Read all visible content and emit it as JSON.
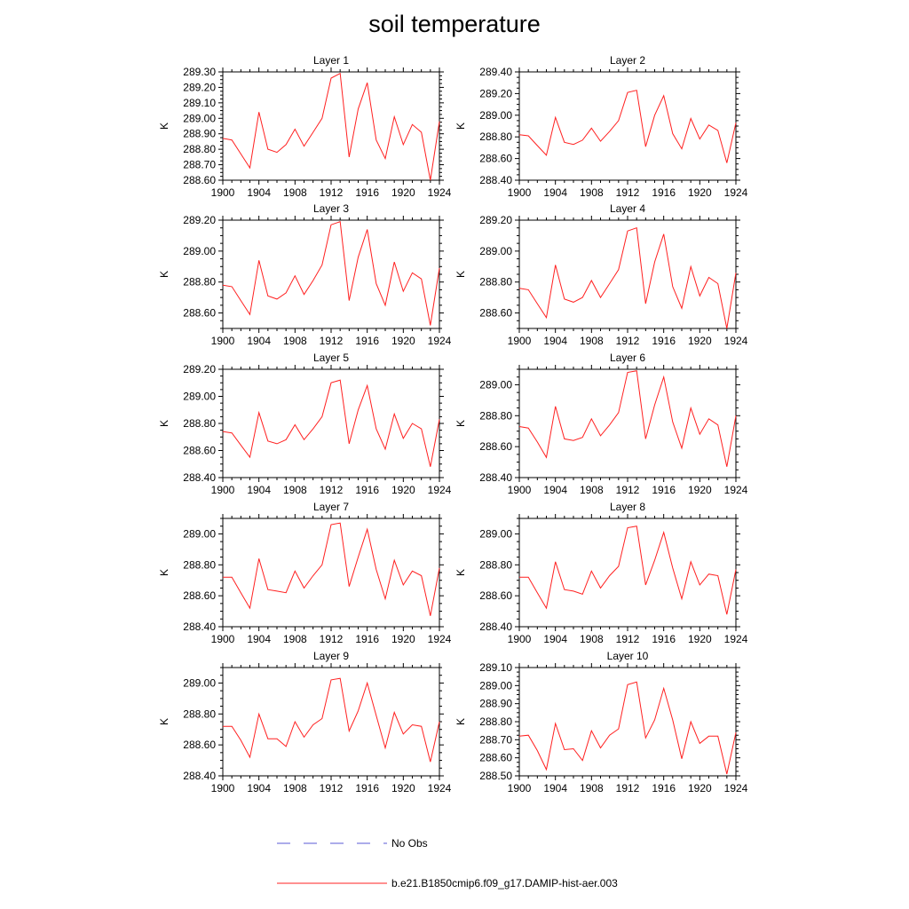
{
  "title": "soil temperature",
  "legend": {
    "position": "bottom",
    "entries": [
      {
        "label": "No Obs",
        "color": "#5a5ad6",
        "style": "dashed"
      },
      {
        "label": "b.e21.B1850cmip6.f09_g17.DAMIP-hist-aer.003",
        "color": "#ff2020",
        "style": "solid"
      }
    ]
  },
  "chart_data": [
    {
      "type": "line",
      "title": "Layer 1",
      "ylabel": "K",
      "x": [
        1900,
        1901,
        1902,
        1903,
        1904,
        1905,
        1906,
        1907,
        1908,
        1909,
        1910,
        1911,
        1912,
        1913,
        1914,
        1915,
        1916,
        1917,
        1918,
        1919,
        1920,
        1921,
        1922,
        1923,
        1924
      ],
      "series": [
        {
          "name": "b.e21.B1850cmip6.f09_g17.DAMIP-hist-aer.003",
          "values": [
            288.87,
            288.86,
            288.77,
            288.68,
            289.04,
            288.8,
            288.78,
            288.83,
            288.93,
            288.82,
            288.91,
            289.0,
            289.26,
            289.29,
            288.75,
            289.06,
            289.23,
            288.86,
            288.74,
            289.01,
            288.83,
            288.96,
            288.91,
            288.6,
            288.98
          ]
        }
      ],
      "ylim": [
        288.6,
        289.3
      ],
      "yticks": [
        "288.60",
        "288.70",
        "288.80",
        "288.90",
        "289.00",
        "289.10",
        "289.20",
        "289.30"
      ],
      "xticks": [
        "1900",
        "1904",
        "1908",
        "1912",
        "1916",
        "1920",
        "1924"
      ]
    },
    {
      "type": "line",
      "title": "Layer 2",
      "ylabel": "K",
      "x": [
        1900,
        1901,
        1902,
        1903,
        1904,
        1905,
        1906,
        1907,
        1908,
        1909,
        1910,
        1911,
        1912,
        1913,
        1914,
        1915,
        1916,
        1917,
        1918,
        1919,
        1920,
        1921,
        1922,
        1923,
        1924
      ],
      "series": [
        {
          "name": "b.e21.B1850cmip6.f09_g17.DAMIP-hist-aer.003",
          "values": [
            288.82,
            288.81,
            288.72,
            288.63,
            288.98,
            288.75,
            288.73,
            288.77,
            288.88,
            288.76,
            288.85,
            288.95,
            289.21,
            289.23,
            288.71,
            289.0,
            289.18,
            288.83,
            288.69,
            288.97,
            288.78,
            288.91,
            288.86,
            288.56,
            288.93
          ]
        }
      ],
      "ylim": [
        288.4,
        289.4
      ],
      "yticks": [
        "288.40",
        "288.60",
        "288.80",
        "289.00",
        "289.20",
        "289.40"
      ],
      "xticks": [
        "1900",
        "1904",
        "1908",
        "1912",
        "1916",
        "1920",
        "1924"
      ]
    },
    {
      "type": "line",
      "title": "Layer 3",
      "ylabel": "K",
      "x": [
        1900,
        1901,
        1902,
        1903,
        1904,
        1905,
        1906,
        1907,
        1908,
        1909,
        1910,
        1911,
        1912,
        1913,
        1914,
        1915,
        1916,
        1917,
        1918,
        1919,
        1920,
        1921,
        1922,
        1923,
        1924
      ],
      "series": [
        {
          "name": "b.e21.B1850cmip6.f09_g17.DAMIP-hist-aer.003",
          "values": [
            288.78,
            288.77,
            288.68,
            288.59,
            288.94,
            288.71,
            288.69,
            288.73,
            288.84,
            288.72,
            288.81,
            288.91,
            289.17,
            289.19,
            288.68,
            288.96,
            289.14,
            288.79,
            288.65,
            288.93,
            288.74,
            288.86,
            288.82,
            288.52,
            288.89
          ]
        }
      ],
      "ylim": [
        288.5,
        289.2
      ],
      "yticks": [
        "288.60",
        "288.80",
        "289.00",
        "289.20"
      ],
      "xticks": [
        "1900",
        "1904",
        "1908",
        "1912",
        "1916",
        "1920",
        "1924"
      ]
    },
    {
      "type": "line",
      "title": "Layer 4",
      "ylabel": "K",
      "x": [
        1900,
        1901,
        1902,
        1903,
        1904,
        1905,
        1906,
        1907,
        1908,
        1909,
        1910,
        1911,
        1912,
        1913,
        1914,
        1915,
        1916,
        1917,
        1918,
        1919,
        1920,
        1921,
        1922,
        1923,
        1924
      ],
      "series": [
        {
          "name": "b.e21.B1850cmip6.f09_g17.DAMIP-hist-aer.003",
          "values": [
            288.76,
            288.75,
            288.66,
            288.57,
            288.91,
            288.69,
            288.67,
            288.7,
            288.81,
            288.7,
            288.79,
            288.88,
            289.13,
            289.15,
            288.66,
            288.93,
            289.11,
            288.77,
            288.63,
            288.9,
            288.71,
            288.83,
            288.79,
            288.5,
            288.86
          ]
        }
      ],
      "ylim": [
        288.5,
        289.2
      ],
      "yticks": [
        "288.60",
        "288.80",
        "289.00",
        "289.20"
      ],
      "xticks": [
        "1900",
        "1904",
        "1908",
        "1912",
        "1916",
        "1920",
        "1924"
      ]
    },
    {
      "type": "line",
      "title": "Layer 5",
      "ylabel": "K",
      "x": [
        1900,
        1901,
        1902,
        1903,
        1904,
        1905,
        1906,
        1907,
        1908,
        1909,
        1910,
        1911,
        1912,
        1913,
        1914,
        1915,
        1916,
        1917,
        1918,
        1919,
        1920,
        1921,
        1922,
        1923,
        1924
      ],
      "series": [
        {
          "name": "b.e21.B1850cmip6.f09_g17.DAMIP-hist-aer.003",
          "values": [
            288.74,
            288.73,
            288.64,
            288.55,
            288.88,
            288.67,
            288.65,
            288.68,
            288.79,
            288.68,
            288.76,
            288.85,
            289.1,
            289.12,
            288.65,
            288.9,
            289.08,
            288.76,
            288.61,
            288.87,
            288.69,
            288.8,
            288.76,
            288.48,
            288.83
          ]
        }
      ],
      "ylim": [
        288.4,
        289.2
      ],
      "yticks": [
        "288.40",
        "288.60",
        "288.80",
        "289.00",
        "289.20"
      ],
      "xticks": [
        "1900",
        "1904",
        "1908",
        "1912",
        "1916",
        "1920",
        "1924"
      ]
    },
    {
      "type": "line",
      "title": "Layer 6",
      "ylabel": "K",
      "x": [
        1900,
        1901,
        1902,
        1903,
        1904,
        1905,
        1906,
        1907,
        1908,
        1909,
        1910,
        1911,
        1912,
        1913,
        1914,
        1915,
        1916,
        1917,
        1918,
        1919,
        1920,
        1921,
        1922,
        1923,
        1924
      ],
      "series": [
        {
          "name": "b.e21.B1850cmip6.f09_g17.DAMIP-hist-aer.003",
          "values": [
            288.73,
            288.72,
            288.63,
            288.53,
            288.86,
            288.65,
            288.64,
            288.66,
            288.78,
            288.67,
            288.74,
            288.82,
            289.08,
            289.09,
            288.65,
            288.87,
            289.05,
            288.76,
            288.59,
            288.85,
            288.68,
            288.78,
            288.74,
            288.47,
            288.8
          ]
        }
      ],
      "ylim": [
        288.4,
        289.1
      ],
      "yticks": [
        "288.40",
        "288.60",
        "288.80",
        "289.00"
      ],
      "xticks": [
        "1900",
        "1904",
        "1908",
        "1912",
        "1916",
        "1920",
        "1924"
      ]
    },
    {
      "type": "line",
      "title": "Layer 7",
      "ylabel": "K",
      "x": [
        1900,
        1901,
        1902,
        1903,
        1904,
        1905,
        1906,
        1907,
        1908,
        1909,
        1910,
        1911,
        1912,
        1913,
        1914,
        1915,
        1916,
        1917,
        1918,
        1919,
        1920,
        1921,
        1922,
        1923,
        1924
      ],
      "series": [
        {
          "name": "b.e21.B1850cmip6.f09_g17.DAMIP-hist-aer.003",
          "values": [
            288.72,
            288.72,
            288.62,
            288.52,
            288.84,
            288.64,
            288.63,
            288.62,
            288.76,
            288.65,
            288.73,
            288.8,
            289.06,
            289.07,
            288.66,
            288.85,
            289.03,
            288.77,
            288.58,
            288.83,
            288.67,
            288.76,
            288.73,
            288.47,
            288.78
          ]
        }
      ],
      "ylim": [
        288.4,
        289.1
      ],
      "yticks": [
        "288.40",
        "288.60",
        "288.80",
        "289.00"
      ],
      "xticks": [
        "1900",
        "1904",
        "1908",
        "1912",
        "1916",
        "1920",
        "1924"
      ]
    },
    {
      "type": "line",
      "title": "Layer 8",
      "ylabel": "K",
      "x": [
        1900,
        1901,
        1902,
        1903,
        1904,
        1905,
        1906,
        1907,
        1908,
        1909,
        1910,
        1911,
        1912,
        1913,
        1914,
        1915,
        1916,
        1917,
        1918,
        1919,
        1920,
        1921,
        1922,
        1923,
        1924
      ],
      "series": [
        {
          "name": "b.e21.B1850cmip6.f09_g17.DAMIP-hist-aer.003",
          "values": [
            288.72,
            288.72,
            288.62,
            288.52,
            288.82,
            288.64,
            288.63,
            288.61,
            288.76,
            288.65,
            288.73,
            288.79,
            289.04,
            289.05,
            288.67,
            288.83,
            289.01,
            288.78,
            288.58,
            288.82,
            288.67,
            288.74,
            288.73,
            288.48,
            288.77
          ]
        }
      ],
      "ylim": [
        288.4,
        289.1
      ],
      "yticks": [
        "288.40",
        "288.60",
        "288.80",
        "289.00"
      ],
      "xticks": [
        "1900",
        "1904",
        "1908",
        "1912",
        "1916",
        "1920",
        "1924"
      ]
    },
    {
      "type": "line",
      "title": "Layer 9",
      "ylabel": "K",
      "x": [
        1900,
        1901,
        1902,
        1903,
        1904,
        1905,
        1906,
        1907,
        1908,
        1909,
        1910,
        1911,
        1912,
        1913,
        1914,
        1915,
        1916,
        1917,
        1918,
        1919,
        1920,
        1921,
        1922,
        1923,
        1924
      ],
      "series": [
        {
          "name": "b.e21.B1850cmip6.f09_g17.DAMIP-hist-aer.003",
          "values": [
            288.72,
            288.72,
            288.63,
            288.52,
            288.8,
            288.64,
            288.64,
            288.59,
            288.75,
            288.65,
            288.73,
            288.77,
            289.02,
            289.03,
            288.69,
            288.82,
            289.0,
            288.79,
            288.58,
            288.81,
            288.67,
            288.73,
            288.72,
            288.49,
            288.75
          ]
        }
      ],
      "ylim": [
        288.4,
        289.1
      ],
      "yticks": [
        "288.40",
        "288.60",
        "288.80",
        "289.00"
      ],
      "xticks": [
        "1900",
        "1904",
        "1908",
        "1912",
        "1916",
        "1920",
        "1924"
      ]
    },
    {
      "type": "line",
      "title": "Layer 10",
      "ylabel": "K",
      "x": [
        1900,
        1901,
        1902,
        1903,
        1904,
        1905,
        1906,
        1907,
        1908,
        1909,
        1910,
        1911,
        1912,
        1913,
        1914,
        1915,
        1916,
        1917,
        1918,
        1919,
        1920,
        1921,
        1922,
        1923,
        1924
      ],
      "series": [
        {
          "name": "b.e21.B1850cmip6.f09_g17.DAMIP-hist-aer.003",
          "values": [
            288.72,
            288.725,
            288.64,
            288.535,
            288.79,
            288.645,
            288.65,
            288.585,
            288.75,
            288.655,
            288.725,
            288.76,
            289.005,
            289.02,
            288.71,
            288.81,
            288.985,
            288.81,
            288.595,
            288.8,
            288.68,
            288.72,
            288.72,
            288.51,
            288.74
          ]
        }
      ],
      "ylim": [
        288.5,
        289.1
      ],
      "yticks": [
        "288.50",
        "288.60",
        "288.70",
        "288.80",
        "288.90",
        "289.00",
        "289.10"
      ],
      "xticks": [
        "1900",
        "1904",
        "1908",
        "1912",
        "1916",
        "1920",
        "1924"
      ]
    }
  ]
}
